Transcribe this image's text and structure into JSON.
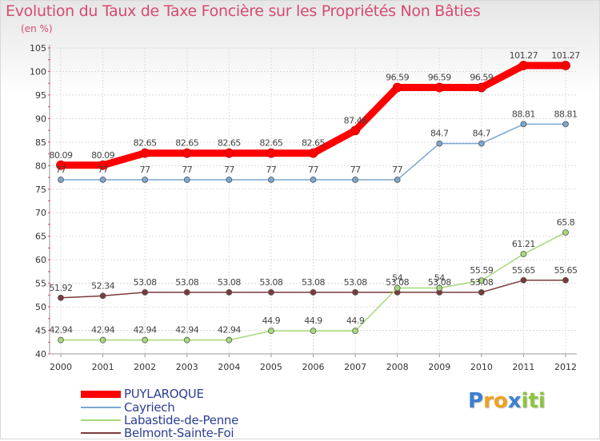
{
  "chart_data": {
    "type": "line",
    "title": "Evolution du Taux de Taxe Foncière sur les Propriétés Non Bâties",
    "ylabel": "(en %)",
    "xlabel": "",
    "ylim": [
      40,
      105
    ],
    "yticks": [
      "40",
      "45",
      "50",
      "55",
      "60",
      "65",
      "70",
      "75",
      "80",
      "85",
      "90",
      "95",
      "100",
      "105"
    ],
    "categories": [
      "2000",
      "2001",
      "2002",
      "2003",
      "2004",
      "2005",
      "2006",
      "2007",
      "2008",
      "2009",
      "2010",
      "2011",
      "2012"
    ],
    "series": [
      {
        "name": "PUYLAROQUE",
        "color": "#ff0000",
        "values": [
          80.09,
          80.09,
          82.65,
          82.65,
          82.65,
          82.65,
          82.65,
          87.46,
          96.59,
          96.59,
          96.59,
          101.27,
          101.27
        ],
        "labels": [
          "80.09",
          "80.09",
          "82.65",
          "82.65",
          "82.65",
          "82.65",
          "82.65",
          "87.46",
          "96.59",
          "96.59",
          "96.59",
          "101.27",
          "101.27"
        ]
      },
      {
        "name": "Cayriech",
        "color": "#7ba7d1",
        "values": [
          77,
          77,
          77,
          77,
          77,
          77,
          77,
          77,
          77,
          84.7,
          84.7,
          88.81,
          88.81
        ],
        "labels": [
          "77",
          "77",
          "77",
          "77",
          "77",
          "77",
          "77",
          "77",
          "77",
          "84.7",
          "84.7",
          "88.81",
          "88.81"
        ]
      },
      {
        "name": "Labastide-de-Penne",
        "color": "#a6d97a",
        "values": [
          42.94,
          42.94,
          42.94,
          42.94,
          42.94,
          44.9,
          44.9,
          44.9,
          54,
          54,
          55.59,
          61.21,
          65.8
        ],
        "labels": [
          "42.94",
          "42.94",
          "42.94",
          "42.94",
          "42.94",
          "44.9",
          "44.9",
          "44.9",
          "54",
          "54",
          "55.59",
          "61.21",
          "65.8"
        ]
      },
      {
        "name": "Belmont-Sainte-Foi",
        "color": "#7a3b3b",
        "values": [
          51.92,
          52.34,
          53.08,
          53.08,
          53.08,
          53.08,
          53.08,
          53.08,
          53.08,
          53.08,
          53.08,
          55.65,
          55.65
        ],
        "labels": [
          "51.92",
          "52.34",
          "53.08",
          "53.08",
          "53.08",
          "53.08",
          "53.08",
          "53.08",
          "53.08",
          "53.08",
          "53.08",
          "55.65",
          "55.65"
        ]
      }
    ],
    "legend": [
      "PUYLAROQUE",
      "Cayriech",
      "Labastide-de-Penne",
      "Belmont-Sainte-Foi"
    ],
    "legend_position": "bottom-left",
    "grid": true
  },
  "branding": {
    "logo_text": "Proxiti",
    "letters": [
      "P",
      "r",
      "o",
      "x",
      "i",
      "t",
      "i"
    ],
    "letter_colors": [
      "#3d7fd0",
      "#f2a11c",
      "#f2a11c",
      "#3d7fd0",
      "#8cc63f",
      "#8cc63f",
      "#8cc63f"
    ]
  }
}
